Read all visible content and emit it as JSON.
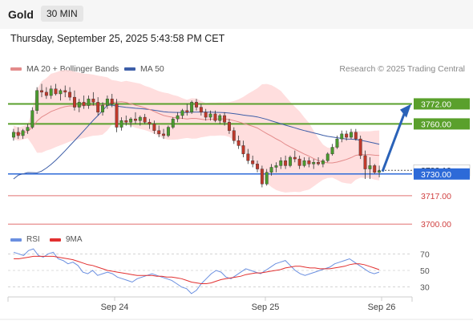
{
  "header": {
    "instrument": "Gold",
    "timeframe": "30 MIN",
    "datetime": "Thursday, September 25, 2025 5:43:58 PM CET"
  },
  "legend": {
    "ma20_bb": "MA 20 + Bollinger Bands",
    "ma50": "MA 50",
    "research": "Research © 2025 Trading Central"
  },
  "rsi_legend": {
    "rsi": "RSI",
    "ma9": "9MA"
  },
  "colors": {
    "up": "#4a9a2e",
    "down": "#c0392b",
    "bollinger_fill": "#ffd8d8",
    "ma20": "#e38b8b",
    "ma50": "#3d5ea8",
    "resistance": "#5aa02c",
    "pivot": "#2d6ad8",
    "support": "#e27070",
    "rsi": "#6a8fe0",
    "rsi_ma": "#e23030"
  },
  "chart_data": [
    {
      "type": "candlestick",
      "title": "Gold 30 MIN",
      "x_labels": [
        "Sep 24",
        "Sep 25",
        "Sep 26"
      ],
      "ylim": [
        3690,
        3790
      ],
      "levels": [
        {
          "value": 3772.0,
          "label": "3772.00",
          "kind": "resistance"
        },
        {
          "value": 3760.0,
          "label": "3760.00",
          "kind": "resistance"
        },
        {
          "value": 3732.19,
          "label": "3732.19",
          "kind": "current"
        },
        {
          "value": 3730.0,
          "label": "3730.00",
          "kind": "pivot"
        },
        {
          "value": 3717.0,
          "label": "3717.00",
          "kind": "support"
        },
        {
          "value": 3700.0,
          "label": "3700.00",
          "kind": "support"
        }
      ],
      "ohlc": [
        [
          3752,
          3757,
          3750,
          3755
        ],
        [
          3755,
          3758,
          3751,
          3753
        ],
        [
          3753,
          3757,
          3751,
          3756
        ],
        [
          3756,
          3760,
          3754,
          3758
        ],
        [
          3758,
          3770,
          3757,
          3768
        ],
        [
          3768,
          3782,
          3766,
          3780
        ],
        [
          3780,
          3784,
          3776,
          3779
        ],
        [
          3779,
          3782,
          3775,
          3777
        ],
        [
          3777,
          3783,
          3775,
          3781
        ],
        [
          3781,
          3784,
          3777,
          3778
        ],
        [
          3778,
          3781,
          3774,
          3780
        ],
        [
          3780,
          3783,
          3776,
          3779
        ],
        [
          3779,
          3782,
          3774,
          3776
        ],
        [
          3776,
          3780,
          3768,
          3770
        ],
        [
          3770,
          3775,
          3767,
          3773
        ],
        [
          3773,
          3777,
          3769,
          3771
        ],
        [
          3771,
          3777,
          3769,
          3775
        ],
        [
          3775,
          3779,
          3771,
          3773
        ],
        [
          3773,
          3776,
          3765,
          3767
        ],
        [
          3767,
          3773,
          3765,
          3771
        ],
        [
          3771,
          3777,
          3769,
          3775
        ],
        [
          3775,
          3778,
          3770,
          3772
        ],
        [
          3772,
          3775,
          3755,
          3758
        ],
        [
          3758,
          3764,
          3756,
          3762
        ],
        [
          3762,
          3765,
          3759,
          3761
        ],
        [
          3761,
          3764,
          3758,
          3763
        ],
        [
          3763,
          3767,
          3760,
          3762
        ],
        [
          3762,
          3765,
          3759,
          3764
        ],
        [
          3764,
          3766,
          3760,
          3761
        ],
        [
          3761,
          3763,
          3757,
          3760
        ],
        [
          3760,
          3762,
          3754,
          3756
        ],
        [
          3756,
          3759,
          3752,
          3754
        ],
        [
          3754,
          3757,
          3751,
          3753
        ],
        [
          3753,
          3759,
          3752,
          3758
        ],
        [
          3758,
          3764,
          3757,
          3763
        ],
        [
          3763,
          3767,
          3761,
          3765
        ],
        [
          3765,
          3769,
          3763,
          3768
        ],
        [
          3768,
          3772,
          3765,
          3767
        ],
        [
          3767,
          3774,
          3766,
          3773
        ],
        [
          3773,
          3775,
          3768,
          3770
        ],
        [
          3770,
          3772,
          3765,
          3767
        ],
        [
          3767,
          3769,
          3762,
          3764
        ],
        [
          3764,
          3768,
          3762,
          3766
        ],
        [
          3766,
          3768,
          3761,
          3762
        ],
        [
          3762,
          3766,
          3760,
          3765
        ],
        [
          3765,
          3767,
          3759,
          3761
        ],
        [
          3761,
          3763,
          3754,
          3756
        ],
        [
          3756,
          3758,
          3748,
          3750
        ],
        [
          3750,
          3753,
          3745,
          3747
        ],
        [
          3747,
          3750,
          3740,
          3742
        ],
        [
          3742,
          3745,
          3736,
          3738
        ],
        [
          3738,
          3741,
          3734,
          3736
        ],
        [
          3736,
          3738,
          3731,
          3733
        ],
        [
          3733,
          3735,
          3722,
          3724
        ],
        [
          3724,
          3733,
          3723,
          3731
        ],
        [
          3731,
          3736,
          3729,
          3734
        ],
        [
          3734,
          3737,
          3731,
          3735
        ],
        [
          3735,
          3740,
          3733,
          3738
        ],
        [
          3738,
          3741,
          3733,
          3735
        ],
        [
          3735,
          3741,
          3734,
          3740
        ],
        [
          3740,
          3744,
          3737,
          3739
        ],
        [
          3739,
          3741,
          3733,
          3735
        ],
        [
          3735,
          3740,
          3734,
          3738
        ],
        [
          3738,
          3740,
          3734,
          3736
        ],
        [
          3736,
          3739,
          3733,
          3737
        ],
        [
          3737,
          3740,
          3735,
          3736
        ],
        [
          3736,
          3739,
          3734,
          3738
        ],
        [
          3738,
          3743,
          3737,
          3742
        ],
        [
          3742,
          3748,
          3741,
          3746
        ],
        [
          3746,
          3753,
          3745,
          3751
        ],
        [
          3751,
          3756,
          3749,
          3754
        ],
        [
          3754,
          3756,
          3750,
          3752
        ],
        [
          3752,
          3757,
          3751,
          3755
        ],
        [
          3755,
          3757,
          3750,
          3751
        ],
        [
          3751,
          3753,
          3739,
          3741
        ],
        [
          3741,
          3744,
          3727,
          3733
        ],
        [
          3733,
          3740,
          3727,
          3735
        ],
        [
          3735,
          3736,
          3730,
          3731
        ],
        [
          3731,
          3735,
          3728,
          3732
        ]
      ]
    },
    {
      "type": "line",
      "title": "RSI",
      "series": [
        {
          "name": "RSI"
        },
        {
          "name": "9MA"
        }
      ],
      "yticks": [
        30,
        50,
        70
      ],
      "ylim": [
        20,
        80
      ],
      "rsi": [
        72,
        70,
        68,
        74,
        76,
        68,
        66,
        70,
        72,
        64,
        62,
        58,
        60,
        56,
        48,
        46,
        50,
        44,
        46,
        48,
        46,
        42,
        40,
        38,
        36,
        40,
        42,
        44,
        46,
        44,
        42,
        40,
        38,
        34,
        30,
        28,
        22,
        26,
        34,
        40,
        46,
        50,
        48,
        42,
        40,
        44,
        48,
        52,
        50,
        48,
        46,
        50,
        54,
        58,
        60,
        62,
        56,
        50,
        46,
        44,
        46,
        48,
        50,
        52,
        54,
        58,
        60,
        62,
        64,
        60,
        56,
        52,
        48,
        46,
        48
      ],
      "rsi_ma": [
        64,
        64,
        65,
        66,
        67,
        67,
        67,
        67,
        67,
        66,
        65,
        64,
        63,
        61,
        59,
        57,
        56,
        54,
        52,
        50,
        49,
        48,
        47,
        46,
        45,
        44,
        44,
        44,
        44,
        43,
        43,
        42,
        42,
        41,
        40,
        38,
        36,
        35,
        34,
        34,
        35,
        37,
        39,
        40,
        41,
        42,
        43,
        45,
        46,
        47,
        47,
        48,
        49,
        50,
        51,
        53,
        54,
        55,
        55,
        54,
        53,
        53,
        52,
        52,
        52,
        53,
        54,
        55,
        57,
        58,
        58,
        57,
        55,
        53,
        51
      ]
    }
  ]
}
